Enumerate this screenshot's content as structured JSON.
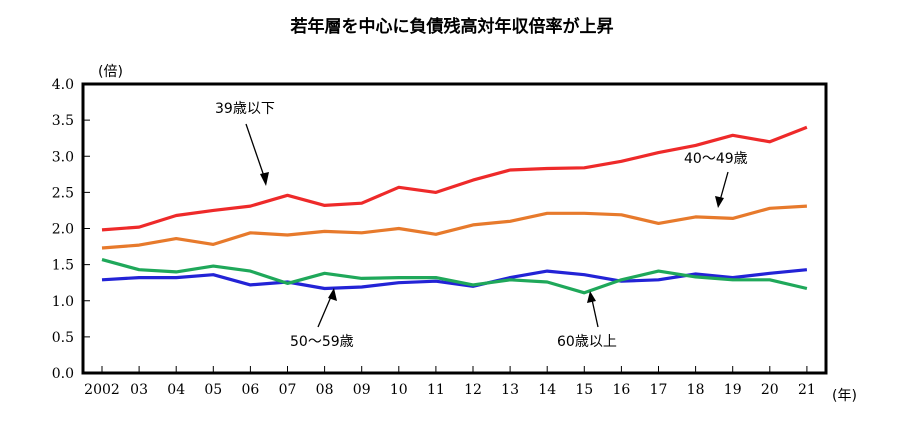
{
  "chart_data": {
    "type": "line",
    "title": "若年層を中心に負債残高対年収倍率が上昇",
    "y_unit": "(倍)",
    "x_unit": "(年)",
    "ylim": [
      0,
      4
    ],
    "y_ticks": [
      "0.0",
      "0.5",
      "1.0",
      "1.5",
      "2.0",
      "2.5",
      "3.0",
      "3.5",
      "4.0"
    ],
    "categories": [
      "2002",
      "03",
      "04",
      "05",
      "06",
      "07",
      "08",
      "09",
      "10",
      "11",
      "12",
      "13",
      "14",
      "15",
      "16",
      "17",
      "18",
      "19",
      "20",
      "21"
    ],
    "grid": false,
    "legend": "none",
    "series": [
      {
        "name": "39歳以下",
        "color": "#ee2a2a",
        "values": [
          1.98,
          2.02,
          2.18,
          2.25,
          2.31,
          2.46,
          2.32,
          2.35,
          2.57,
          2.5,
          2.67,
          2.81,
          2.83,
          2.84,
          2.93,
          3.05,
          3.15,
          3.29,
          3.2,
          3.4
        ]
      },
      {
        "name": "40～49歳",
        "color": "#e77a2c",
        "values": [
          1.73,
          1.77,
          1.86,
          1.78,
          1.94,
          1.91,
          1.96,
          1.94,
          2.0,
          1.92,
          2.05,
          2.1,
          2.21,
          2.21,
          2.19,
          2.07,
          2.16,
          2.14,
          2.28,
          2.31
        ]
      },
      {
        "name": "50～59歳",
        "color": "#2323d6",
        "values": [
          1.29,
          1.32,
          1.32,
          1.36,
          1.22,
          1.26,
          1.17,
          1.19,
          1.25,
          1.27,
          1.2,
          1.32,
          1.41,
          1.36,
          1.27,
          1.29,
          1.37,
          1.32,
          1.38,
          1.43
        ]
      },
      {
        "name": "60歳以上",
        "color": "#1fa85a",
        "values": [
          1.57,
          1.43,
          1.4,
          1.48,
          1.41,
          1.24,
          1.38,
          1.31,
          1.32,
          1.32,
          1.22,
          1.29,
          1.26,
          1.11,
          1.29,
          1.41,
          1.33,
          1.29,
          1.29,
          1.17
        ]
      }
    ]
  }
}
